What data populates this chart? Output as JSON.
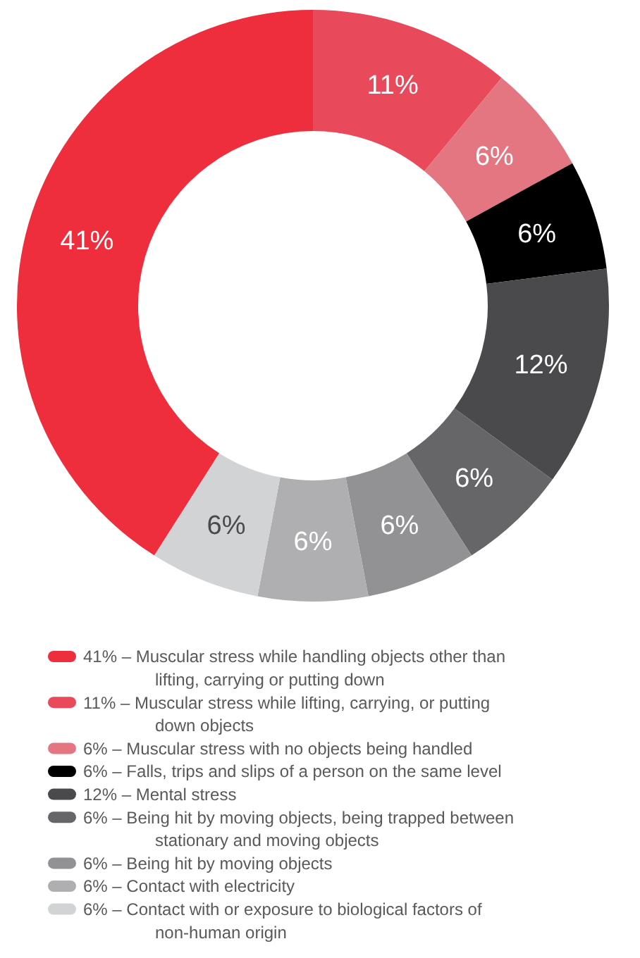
{
  "chart_data": {
    "type": "donut",
    "categories": [
      "Muscular stress while handling objects other than lifting, carrying or putting down",
      "Muscular stress while lifting, carrying, or putting down objects",
      "Muscular stress with no objects being handled",
      "Falls, trips and slips of a person on the same level",
      "Mental stress",
      "Being hit by moving objects, being trapped between stationary and moving objects",
      "Being hit by moving objects",
      "Contact with electricity",
      "Contact with or exposure to biological factors of non-human origin"
    ],
    "values": [
      41,
      11,
      6,
      6,
      12,
      6,
      6,
      6,
      6
    ],
    "value_labels": [
      "41%",
      "11%",
      "6%",
      "6%",
      "12%",
      "6%",
      "6%",
      "6%",
      "6%"
    ],
    "colors": [
      "#ee2e3c",
      "#e94a5b",
      "#e47682",
      "#000000",
      "#4a4a4c",
      "#666668",
      "#929295",
      "#afafb1",
      "#d2d3d5"
    ],
    "legend": "bottom"
  }
}
